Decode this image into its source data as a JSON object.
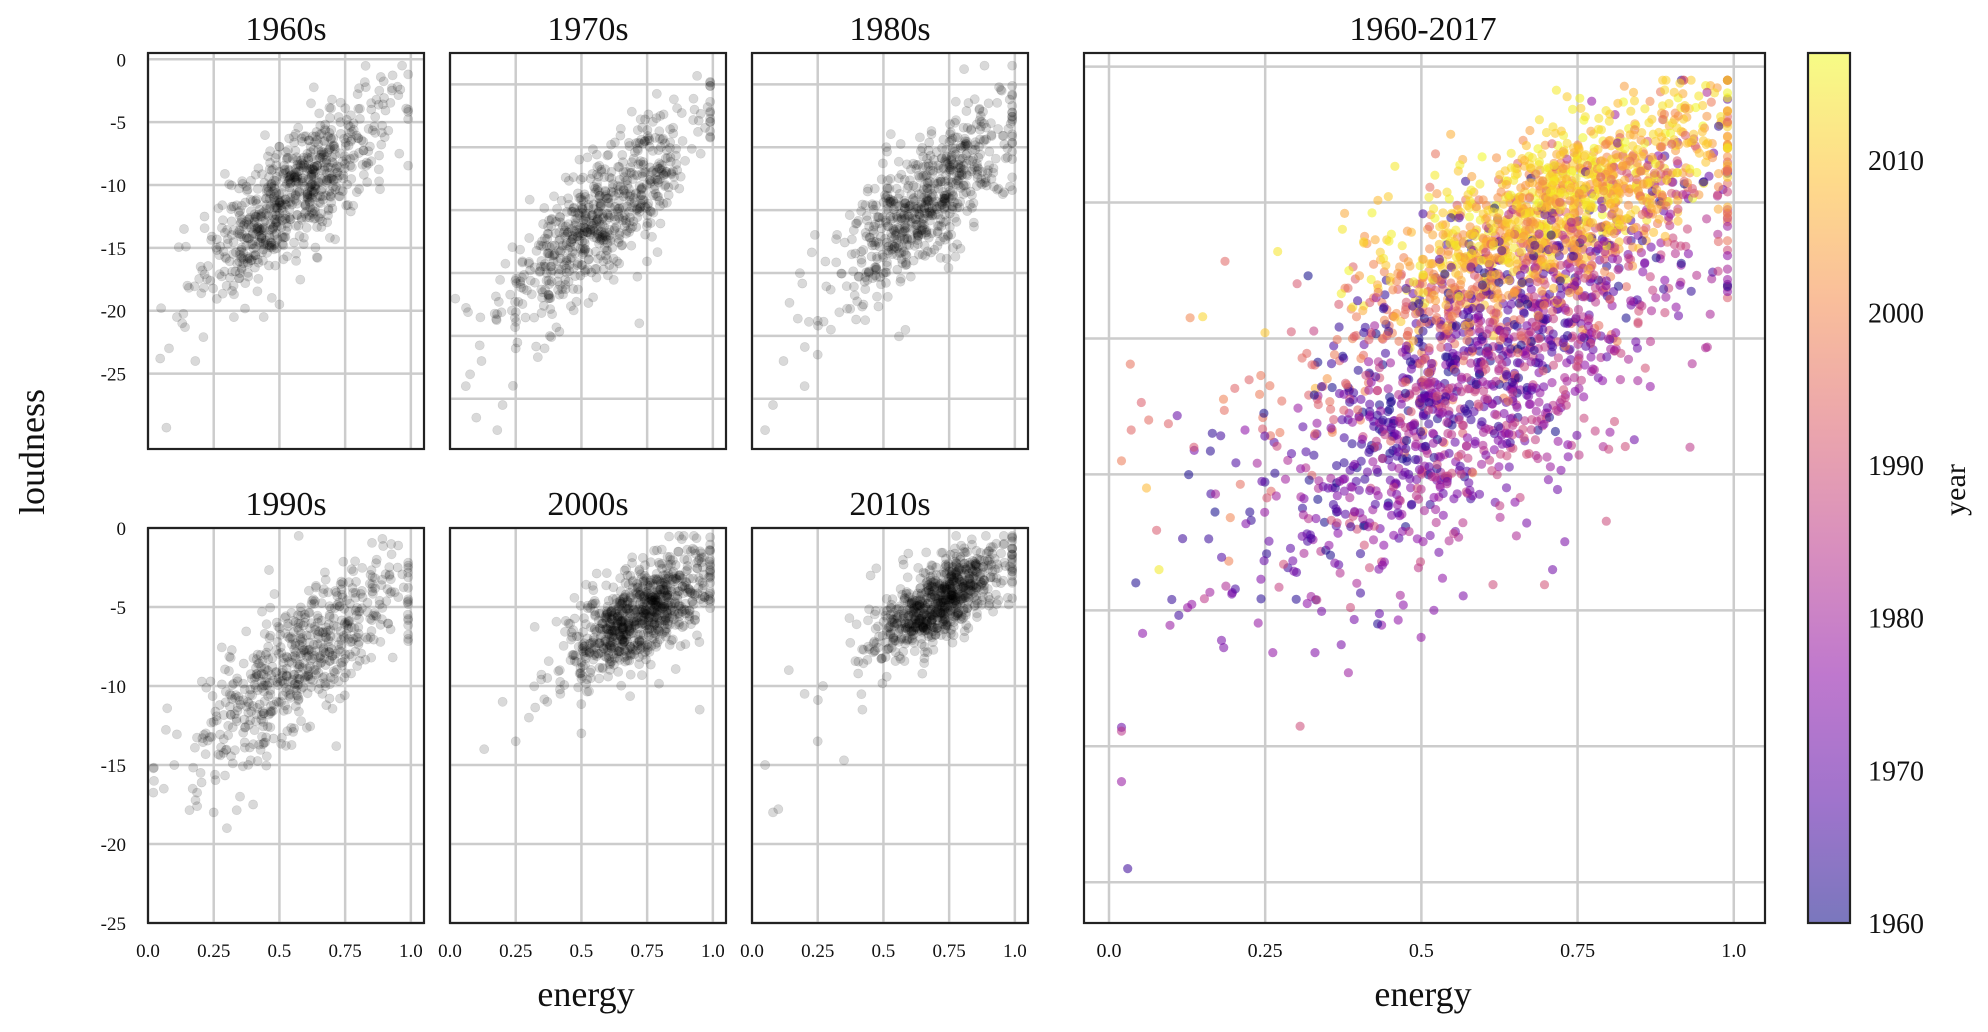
{
  "figure": {
    "ylabel": "loudness",
    "xlabel": "energy"
  },
  "chart_data": [
    {
      "type": "scatter",
      "title": "1960s",
      "xlim": [
        0.0,
        1.05
      ],
      "ylim": [
        -31,
        0.5
      ],
      "xticks": [
        0.0,
        0.25,
        0.5,
        0.75,
        1.0
      ],
      "xtick_labels": [
        "0.0",
        "0.25",
        "0.5",
        "0.75",
        "1.0"
      ],
      "yticks": [
        0,
        -5,
        -10,
        -15,
        -20,
        -25
      ],
      "ytick_labels": [
        "0",
        "-5",
        "-10",
        "-15",
        "-20",
        "-25"
      ],
      "grid": true,
      "marker_color": "#000000",
      "marker_alpha": 0.15,
      "trend": {
        "center_x": 0.55,
        "sd_x": 0.17,
        "y_at_x0": -19.5,
        "slope": 15.5,
        "sd_y": 2.4,
        "count": 700
      },
      "points": [
        [
          0.05,
          -19.8
        ],
        [
          0.08,
          -23
        ],
        [
          0.13,
          -21
        ],
        [
          0.18,
          -24
        ],
        [
          0.07,
          -29.3
        ],
        [
          0.11,
          -20.5
        ],
        [
          0.44,
          -20.5
        ],
        [
          0.5,
          -19.5
        ],
        [
          0.99,
          -1.2
        ],
        [
          0.96,
          -2.4
        ],
        [
          0.88,
          -2.5
        ],
        [
          0.15,
          -18
        ],
        [
          0.2,
          -16.5
        ],
        [
          0.62,
          -3.5
        ],
        [
          0.7,
          -3.2
        ]
      ]
    },
    {
      "type": "scatter",
      "title": "1970s",
      "xlim": [
        0.0,
        1.05
      ],
      "ylim": [
        -31,
        0.5
      ],
      "xticks": [
        0.0,
        0.25,
        0.5,
        0.75,
        1.0
      ],
      "xtick_labels": [
        "0.0",
        "0.25",
        "0.5",
        "0.75",
        "1.0"
      ],
      "yticks": [],
      "grid": true,
      "marker_color": "#000000",
      "marker_alpha": 0.15,
      "trend": {
        "center_x": 0.58,
        "sd_x": 0.19,
        "y_at_x0": -23,
        "slope": 18,
        "sd_y": 2.5,
        "count": 650
      },
      "points": [
        [
          0.06,
          -26
        ],
        [
          0.12,
          -24
        ],
        [
          0.18,
          -29.5
        ],
        [
          0.2,
          -27.5
        ],
        [
          0.1,
          -28.5
        ],
        [
          0.25,
          -23
        ],
        [
          0.36,
          -23
        ],
        [
          0.93,
          -4
        ],
        [
          0.98,
          -3.8
        ],
        [
          0.72,
          -21
        ],
        [
          0.8,
          -4.5
        ]
      ]
    },
    {
      "type": "scatter",
      "title": "1980s",
      "xlim": [
        0.0,
        1.05
      ],
      "ylim": [
        -31,
        0.5
      ],
      "xticks": [
        0.0,
        0.25,
        0.5,
        0.75,
        1.0
      ],
      "xtick_labels": [
        "0.0",
        "0.25",
        "0.5",
        "0.75",
        "1.0"
      ],
      "yticks": [],
      "grid": true,
      "marker_color": "#000000",
      "marker_alpha": 0.15,
      "trend": {
        "center_x": 0.65,
        "sd_x": 0.17,
        "y_at_x0": -22.5,
        "slope": 17,
        "sd_y": 2.5,
        "count": 650
      },
      "points": [
        [
          0.05,
          -29.5
        ],
        [
          0.08,
          -27.5
        ],
        [
          0.2,
          -26
        ],
        [
          0.12,
          -24
        ],
        [
          0.3,
          -21.5
        ],
        [
          0.25,
          -23.5
        ],
        [
          0.95,
          -2.5
        ],
        [
          0.9,
          -3.5
        ]
      ]
    },
    {
      "type": "scatter",
      "title": "1990s",
      "xlim": [
        0.0,
        1.05
      ],
      "ylim": [
        -25,
        0
      ],
      "xticks": [
        0.0,
        0.25,
        0.5,
        0.75,
        1.0
      ],
      "xtick_labels": [
        "0.0",
        "0.25",
        "0.5",
        "0.75",
        "1.0"
      ],
      "yticks": [
        0,
        -5,
        -10,
        -15,
        -20,
        -25
      ],
      "ytick_labels": [
        "0",
        "-5",
        "-10",
        "-15",
        "-20",
        "-25"
      ],
      "grid": true,
      "marker_color": "#000000",
      "marker_alpha": 0.15,
      "trend": {
        "center_x": 0.6,
        "sd_x": 0.2,
        "y_at_x0": -15.5,
        "slope": 12,
        "sd_y": 2.2,
        "count": 600
      },
      "points": [
        [
          0.06,
          -16.5
        ],
        [
          0.1,
          -15
        ],
        [
          0.17,
          -16.5
        ],
        [
          0.2,
          -15.5
        ],
        [
          0.25,
          -18
        ],
        [
          0.3,
          -19
        ],
        [
          0.22,
          -13
        ],
        [
          0.35,
          -17
        ],
        [
          0.4,
          -17.5
        ],
        [
          0.87,
          -2
        ],
        [
          0.95,
          -2.5
        ]
      ]
    },
    {
      "type": "scatter",
      "title": "2000s",
      "xlim": [
        0.0,
        1.05
      ],
      "ylim": [
        -25,
        0
      ],
      "xticks": [
        0.0,
        0.25,
        0.5,
        0.75,
        1.0
      ],
      "xtick_labels": [
        "0.0",
        "0.25",
        "0.5",
        "0.75",
        "1.0"
      ],
      "yticks": [],
      "grid": true,
      "marker_color": "#000000",
      "marker_alpha": 0.15,
      "trend": {
        "center_x": 0.72,
        "sd_x": 0.14,
        "y_at_x0": -12,
        "slope": 9,
        "sd_y": 1.5,
        "count": 800
      },
      "points": [
        [
          0.13,
          -14
        ],
        [
          0.25,
          -13.5
        ],
        [
          0.3,
          -12
        ],
        [
          0.37,
          -11
        ],
        [
          0.42,
          -10.5
        ],
        [
          0.5,
          -13
        ],
        [
          0.95,
          -11.5
        ],
        [
          0.2,
          -11
        ],
        [
          0.93,
          -1.4
        ]
      ]
    },
    {
      "type": "scatter",
      "title": "2010s",
      "xlim": [
        0.0,
        1.05
      ],
      "ylim": [
        -25,
        0
      ],
      "xticks": [
        0.0,
        0.25,
        0.5,
        0.75,
        1.0
      ],
      "xtick_labels": [
        "0.0",
        "0.25",
        "0.5",
        "0.75",
        "1.0"
      ],
      "yticks": [],
      "grid": true,
      "marker_color": "#000000",
      "marker_alpha": 0.15,
      "trend": {
        "center_x": 0.72,
        "sd_x": 0.13,
        "y_at_x0": -11.5,
        "slope": 9.5,
        "sd_y": 1.3,
        "count": 750
      },
      "points": [
        [
          0.05,
          -15
        ],
        [
          0.1,
          -17.8
        ],
        [
          0.08,
          -18
        ],
        [
          0.14,
          -9
        ],
        [
          0.2,
          -10.5
        ],
        [
          0.25,
          -13.5
        ],
        [
          0.35,
          -14.7
        ],
        [
          0.27,
          -10
        ],
        [
          0.42,
          -11.5
        ],
        [
          0.96,
          -1
        ]
      ]
    },
    {
      "type": "scatter",
      "title": "1960-2017",
      "xlim": [
        -0.04,
        1.05
      ],
      "ylim": [
        -31.5,
        0.5
      ],
      "xticks": [
        0.0,
        0.25,
        0.5,
        0.75,
        1.0
      ],
      "xtick_labels": [
        "0.0",
        "0.25",
        "0.5",
        "0.75",
        "1.0"
      ],
      "yticks": [],
      "grid": true,
      "marker_alpha": 0.55,
      "color_by": "year",
      "groups": [
        {
          "year_from": 1960,
          "year_to": 1970,
          "center_x": 0.55,
          "sd_x": 0.17,
          "y_at_x0": -19.5,
          "slope": 15.5,
          "sd_y": 2.4,
          "count": 450
        },
        {
          "year_from": 1970,
          "year_to": 1980,
          "center_x": 0.58,
          "sd_x": 0.19,
          "y_at_x0": -23,
          "slope": 18,
          "sd_y": 2.5,
          "count": 420
        },
        {
          "year_from": 1980,
          "year_to": 1990,
          "center_x": 0.65,
          "sd_x": 0.17,
          "y_at_x0": -22.5,
          "slope": 17,
          "sd_y": 2.5,
          "count": 420
        },
        {
          "year_from": 1990,
          "year_to": 2000,
          "center_x": 0.6,
          "sd_x": 0.2,
          "y_at_x0": -15.5,
          "slope": 12,
          "sd_y": 2.2,
          "count": 400
        },
        {
          "year_from": 2000,
          "year_to": 2010,
          "center_x": 0.72,
          "sd_x": 0.14,
          "y_at_x0": -12,
          "slope": 9,
          "sd_y": 1.5,
          "count": 520
        },
        {
          "year_from": 2010,
          "year_to": 2017,
          "center_x": 0.72,
          "sd_x": 0.13,
          "y_at_x0": -11.5,
          "slope": 9.5,
          "sd_y": 1.3,
          "count": 480
        }
      ],
      "points": [
        {
          "x": 0.03,
          "y": -29.5,
          "year": 1965
        },
        {
          "x": 0.02,
          "y": -26.3,
          "year": 1978
        },
        {
          "x": 0.99,
          "y": -1.2,
          "year": 1968
        },
        {
          "x": 0.06,
          "y": -15.5,
          "year": 2008
        },
        {
          "x": 0.08,
          "y": -18.5,
          "year": 2015
        },
        {
          "x": 0.15,
          "y": -9.2,
          "year": 2012
        },
        {
          "x": 0.27,
          "y": -6.8,
          "year": 2014
        },
        {
          "x": 0.52,
          "y": -20,
          "year": 1975
        },
        {
          "x": 0.71,
          "y": -18.5,
          "year": 1972
        },
        {
          "x": 0.93,
          "y": -14,
          "year": 1985
        },
        {
          "x": 0.43,
          "y": -20.5,
          "year": 1962
        },
        {
          "x": 0.99,
          "y": -8.5,
          "year": 1992
        }
      ]
    }
  ],
  "colorbar": {
    "label": "year",
    "min": 1960,
    "max": 2017,
    "ticks": [
      1960,
      1970,
      1980,
      1990,
      2000,
      2010
    ],
    "tick_labels": [
      "1960",
      "1970",
      "1980",
      "1990",
      "2000",
      "2010"
    ],
    "colormap": "plasma",
    "stops": [
      "#0d0887",
      "#5302a3",
      "#8b0aa5",
      "#b83289",
      "#db5c68",
      "#f48849",
      "#febd2a",
      "#f0f921"
    ]
  }
}
